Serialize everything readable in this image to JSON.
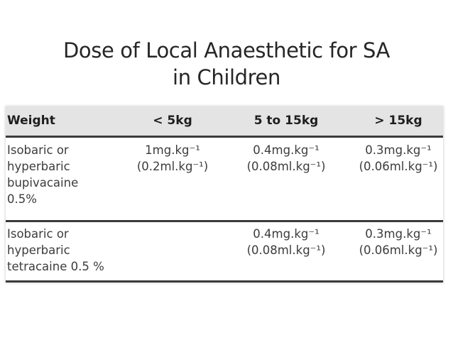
{
  "slide": {
    "title_line1": "Dose of Local Anaesthetic for SA",
    "title_line2": "in Children"
  },
  "table": {
    "headers": [
      "Weight",
      "< 5kg",
      "5 to 15kg",
      "> 15kg"
    ],
    "rows": [
      {
        "drug": [
          "Isobaric or",
          "hyperbaric",
          "bupivacaine",
          "0.5%"
        ],
        "lt5": [
          "1mg.kg⁻¹",
          "(0.2ml.kg⁻¹)"
        ],
        "mid": [
          "0.4mg.kg⁻¹",
          "(0.08ml.kg⁻¹)"
        ],
        "gt15": [
          "0.3mg.kg⁻¹",
          "(0.06ml.kg⁻¹)"
        ]
      },
      {
        "drug": [
          "Isobaric or",
          "hyperbaric",
          "tetracaine 0.5 %"
        ],
        "lt5": [],
        "mid": [
          "0.4mg.kg⁻¹",
          "(0.08ml.kg⁻¹)"
        ],
        "gt15": [
          "0.3mg.kg⁻¹",
          "(0.06ml.kg⁻¹)"
        ]
      }
    ]
  },
  "colors": {
    "title_text": "#262626",
    "header_band": "#e4e4e4",
    "divider": "#3a3a3a",
    "cell_text": "#3c3c3c"
  }
}
